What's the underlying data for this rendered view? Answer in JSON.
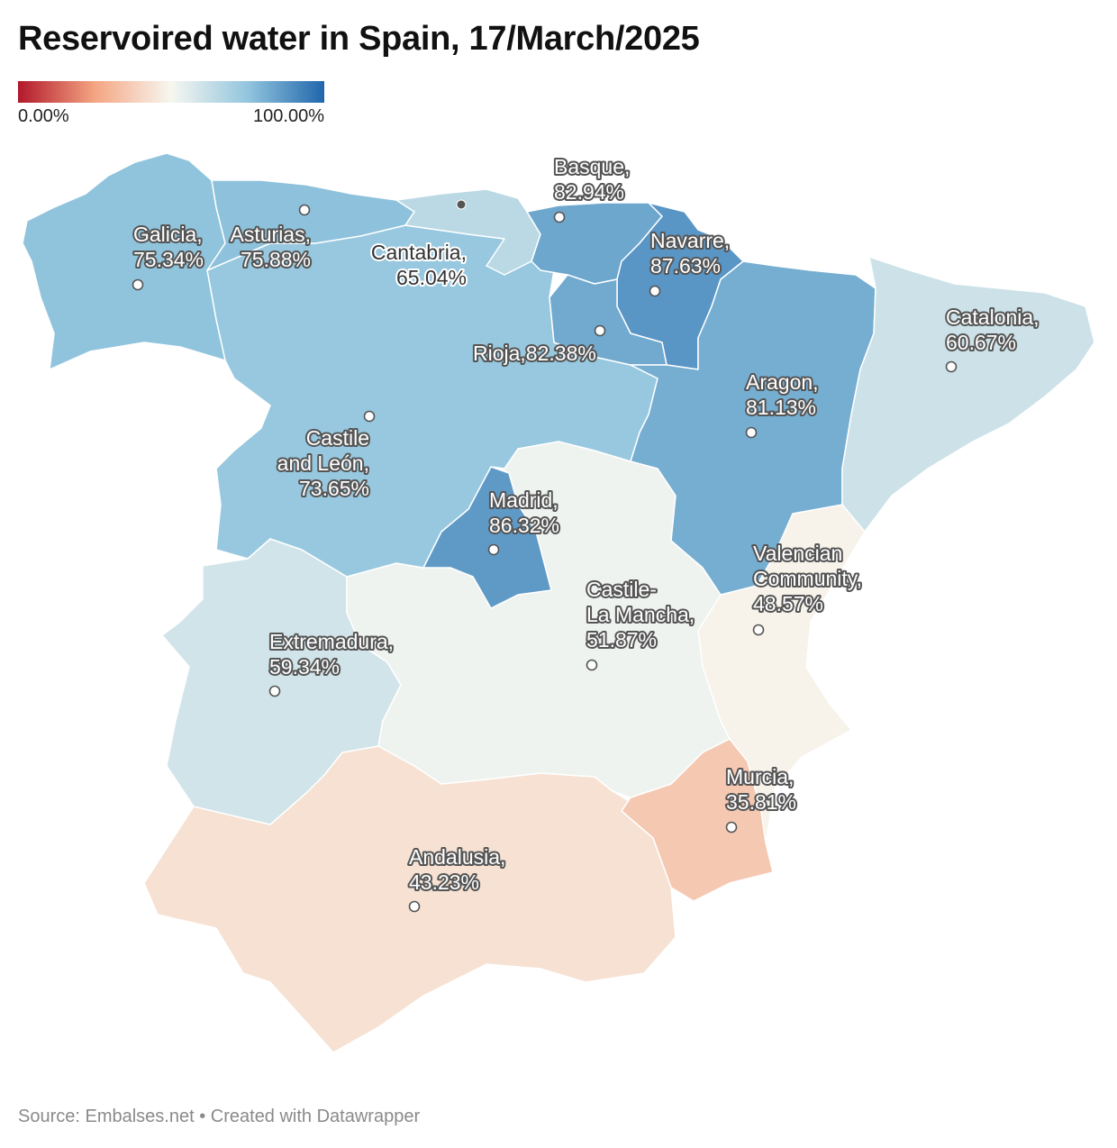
{
  "title": "Reservoired water in Spain, 17/March/2025",
  "legend": {
    "min_label": "0.00%",
    "max_label": "100.00%"
  },
  "footer": {
    "source": "Source: Embalses.net",
    "separator": " • ",
    "credit": "Created with Datawrapper"
  },
  "color_scale": [
    "#b2182b",
    "#f4a582",
    "#f7f7f0",
    "#92c5de",
    "#2166ac"
  ],
  "regions": [
    {
      "key": "galicia",
      "name": "Galicia",
      "value": 75.34,
      "label": [
        "Galicia,",
        "75.34%"
      ]
    },
    {
      "key": "asturias",
      "name": "Asturias",
      "value": 75.88,
      "label": [
        "Asturias,",
        "75.88%"
      ]
    },
    {
      "key": "cantabria",
      "name": "Cantabria",
      "value": 65.04,
      "label": [
        "Cantabria,",
        "65.04%"
      ]
    },
    {
      "key": "basque",
      "name": "Basque",
      "value": 82.94,
      "label": [
        "Basque,",
        "82.94%"
      ]
    },
    {
      "key": "navarre",
      "name": "Navarre",
      "value": 87.63,
      "label": [
        "Navarre,",
        "87.63%"
      ]
    },
    {
      "key": "rioja",
      "name": "Rioja",
      "value": 82.38,
      "label": [
        "Rioja,82.38%"
      ]
    },
    {
      "key": "catalonia",
      "name": "Catalonia",
      "value": 60.67,
      "label": [
        "Catalonia,",
        "60.67%"
      ]
    },
    {
      "key": "aragon",
      "name": "Aragon",
      "value": 81.13,
      "label": [
        "Aragon,",
        "81.13%"
      ]
    },
    {
      "key": "castile_leon",
      "name": "Castile and León",
      "value": 73.65,
      "label": [
        "Castile",
        "and León,",
        "73.65%"
      ]
    },
    {
      "key": "madrid",
      "name": "Madrid",
      "value": 86.32,
      "label": [
        "Madrid,",
        "86.32%"
      ]
    },
    {
      "key": "valencia",
      "name": "Valencian Community",
      "value": 48.57,
      "label": [
        "Valencian",
        "Community,",
        "48.57%"
      ]
    },
    {
      "key": "castile_mancha",
      "name": "Castile-La Mancha",
      "value": 51.87,
      "label": [
        "Castile-",
        "La Mancha,",
        "51.87%"
      ]
    },
    {
      "key": "extremadura",
      "name": "Extremadura",
      "value": 59.34,
      "label": [
        "Extremadura,",
        "59.34%"
      ]
    },
    {
      "key": "murcia",
      "name": "Murcia",
      "value": 35.81,
      "label": [
        "Murcia,",
        "35.81%"
      ]
    },
    {
      "key": "andalusia",
      "name": "Andalusia",
      "value": 43.23,
      "label": [
        "Andalusia,",
        "43.23%"
      ]
    }
  ]
}
